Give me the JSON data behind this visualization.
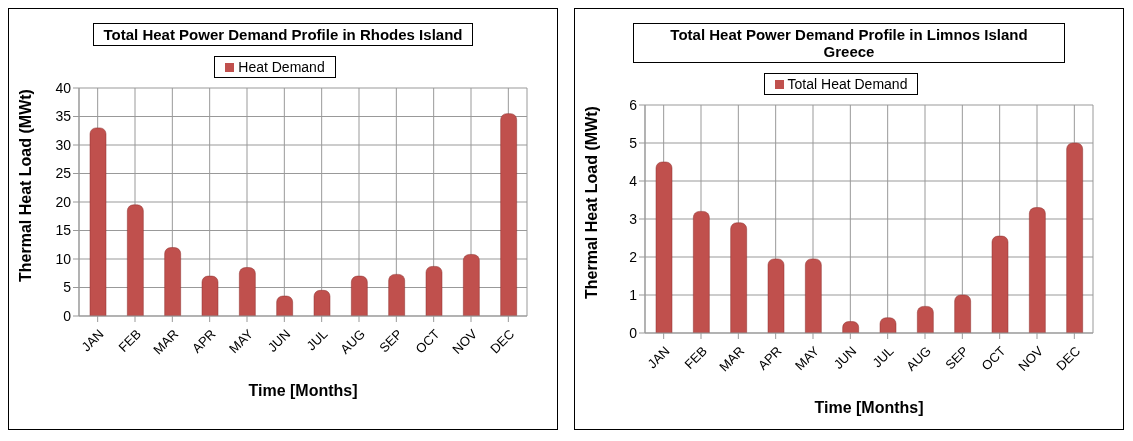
{
  "chart_data": [
    {
      "type": "bar",
      "title": "Total Heat Power Demand Profile in Rhodes Island",
      "xlabel": "Time [Months]",
      "ylabel": "Thermal Heat Load (MWt)",
      "categories": [
        "JAN",
        "FEB",
        "MAR",
        "APR",
        "MAY",
        "JUN",
        "JUL",
        "AUG",
        "SEP",
        "OCT",
        "NOV",
        "DEC"
      ],
      "series": [
        {
          "name": "Heat Demand",
          "color": "#c0504d",
          "values": [
            33,
            19.5,
            12,
            7,
            8.5,
            3.5,
            4.5,
            7,
            7.3,
            8.7,
            10.8,
            35.5
          ]
        }
      ],
      "ylim": [
        0,
        40
      ],
      "yticks": [
        0,
        5,
        10,
        15,
        20,
        25,
        30,
        35,
        40
      ],
      "grid": true,
      "legend": "top"
    },
    {
      "type": "bar",
      "title": "Total Heat Power Demand Profile in Limnos Island Greece",
      "xlabel": "Time [Months]",
      "ylabel": "Thermal Heat Load (MWt)",
      "categories": [
        "JAN",
        "FEB",
        "MAR",
        "APR",
        "MAY",
        "JUN",
        "JUL",
        "AUG",
        "SEP",
        "OCT",
        "NOV",
        "DEC"
      ],
      "series": [
        {
          "name": "Total Heat Demand",
          "color": "#c0504d",
          "values": [
            4.5,
            3.2,
            2.9,
            1.95,
            1.95,
            0.3,
            0.4,
            0.7,
            1.0,
            2.55,
            3.3,
            5.0
          ]
        }
      ],
      "ylim": [
        0,
        6
      ],
      "yticks": [
        0,
        1,
        2,
        3,
        4,
        5,
        6
      ],
      "grid": true,
      "legend": "top"
    }
  ]
}
